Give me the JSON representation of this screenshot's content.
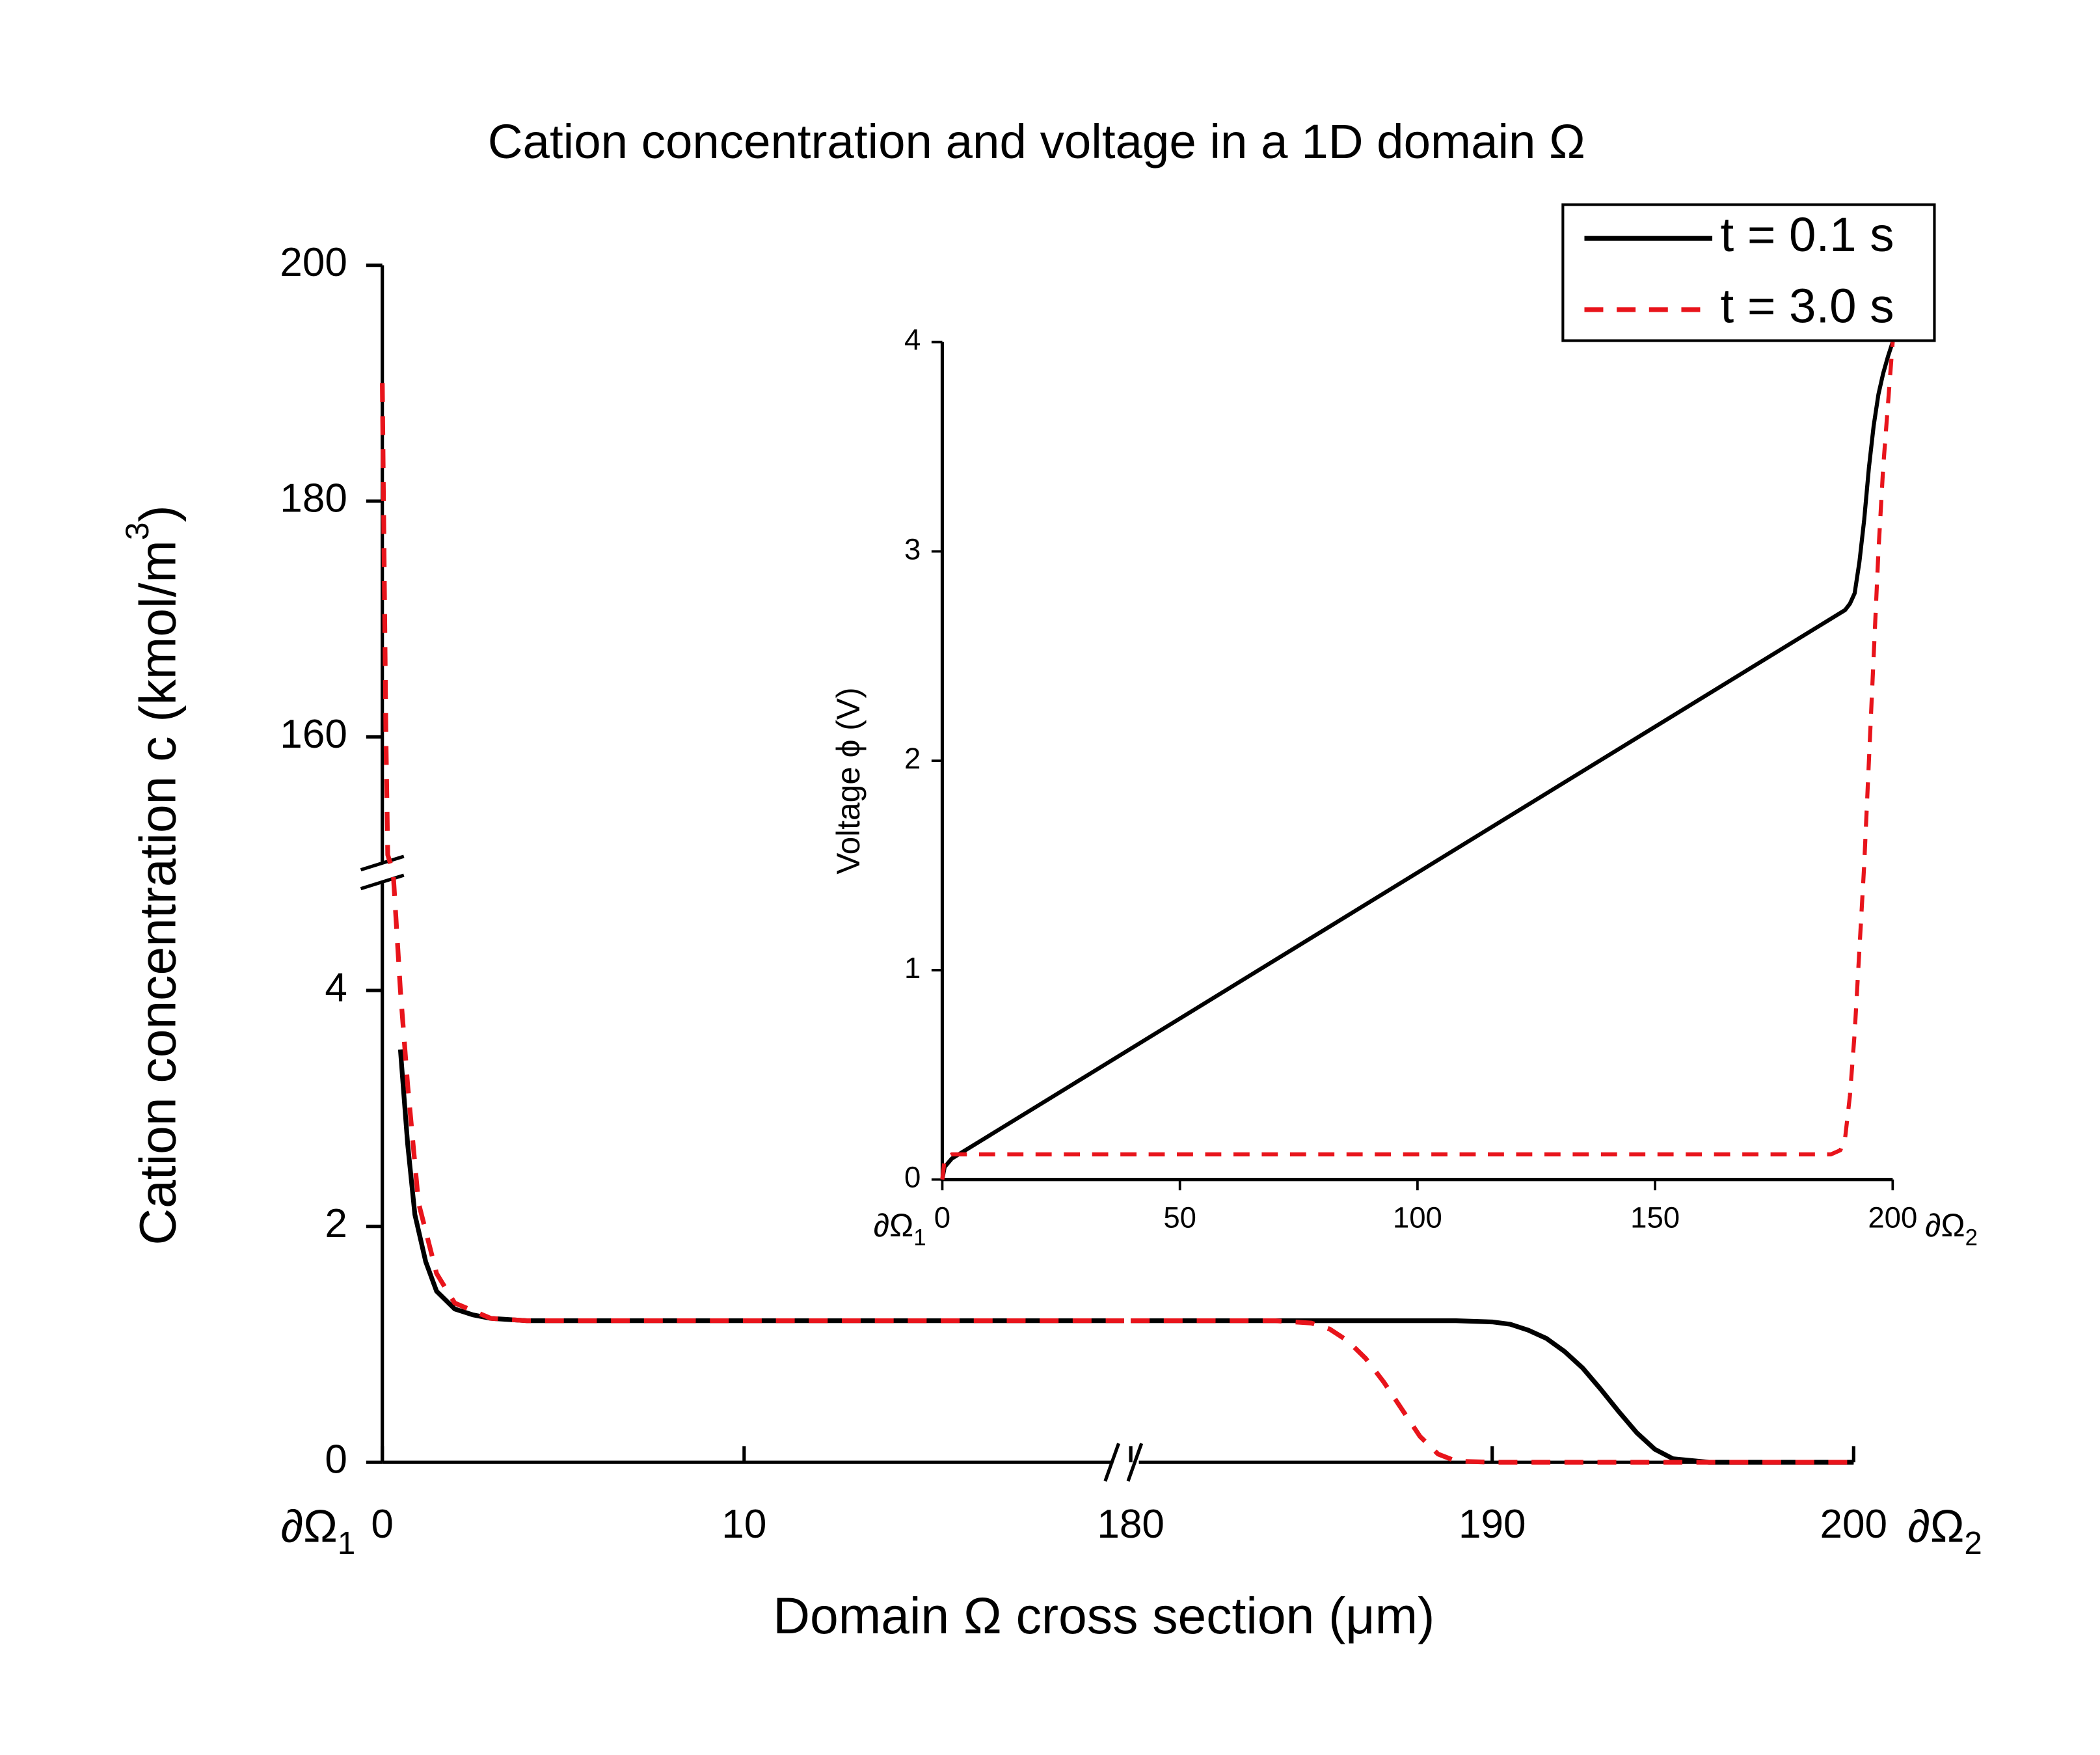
{
  "chart_data": [
    {
      "type": "line",
      "title": "Cation concentration and voltage in a 1D domain Ω",
      "xlabel": "Domain Ω cross section (μm)",
      "ylabel": [
        "Cation concentration c (kmol/m",
        "3",
        ")"
      ],
      "xlim": [
        0,
        200
      ],
      "xbreak": [
        20.5,
        180
      ],
      "xticks": [
        0,
        10,
        180,
        190,
        200
      ],
      "ylim": [
        0,
        200
      ],
      "ybreak": [
        5,
        148.5
      ],
      "yticks": [
        0,
        2,
        4,
        160,
        180,
        200
      ],
      "boundary_labels": [
        {
          "text": "∂Ω",
          "sub": "1"
        },
        {
          "text": "∂Ω",
          "sub": "2"
        }
      ],
      "legend": "top-right",
      "series": [
        {
          "name": "t = 0.1 s",
          "color": "#000000",
          "dash": false,
          "x": [
            0.5,
            0.7,
            0.9,
            1.2,
            1.5,
            2,
            2.5,
            3,
            4,
            6,
            10,
            20.5,
            null,
            180,
            185,
            189,
            190,
            190.5,
            191,
            191.5,
            192,
            192.5,
            193,
            193.5,
            194,
            194.5,
            195,
            196,
            200
          ],
          "values": [
            3.5,
            2.7,
            2.1,
            1.7,
            1.45,
            1.3,
            1.25,
            1.22,
            1.2,
            1.2,
            1.2,
            1.2,
            null,
            1.2,
            1.2,
            1.2,
            1.19,
            1.17,
            1.12,
            1.05,
            0.94,
            0.8,
            0.62,
            0.43,
            0.25,
            0.11,
            0.03,
            0,
            0
          ]
        },
        {
          "name": "t = 3.0 s",
          "color": "#e8141b",
          "dash": true,
          "x": [
            0,
            0.05,
            0.1,
            0.15,
            0.3,
            0.5,
            0.7,
            1,
            1.5,
            2,
            3,
            4,
            10,
            20.5,
            null,
            180,
            184,
            185,
            185.5,
            186,
            186.5,
            187,
            187.5,
            188,
            188.5,
            189,
            190,
            200
          ],
          "values": [
            190,
            175,
            160,
            150,
            5,
            4,
            3.2,
            2.2,
            1.6,
            1.35,
            1.22,
            1.2,
            1.2,
            1.2,
            null,
            1.2,
            1.2,
            1.18,
            1.13,
            1.03,
            0.88,
            0.68,
            0.45,
            0.22,
            0.07,
            0.01,
            0,
            0
          ]
        }
      ]
    },
    {
      "type": "line",
      "ylabel": "Voltage ϕ (V)",
      "xlim": [
        0,
        200
      ],
      "xticks": [
        0,
        50,
        100,
        150,
        200
      ],
      "ylim": [
        0,
        4
      ],
      "yticks": [
        0,
        1,
        2,
        3,
        4
      ],
      "boundary_labels": [
        {
          "text": "∂Ω",
          "sub": "1"
        },
        {
          "text": "∂Ω",
          "sub": "2"
        }
      ],
      "series": [
        {
          "color": "#000000",
          "dash": false,
          "x": [
            0,
            0.5,
            2,
            190,
            191,
            192,
            193,
            194,
            195,
            196,
            197,
            198,
            199,
            200
          ],
          "values": [
            0,
            0.06,
            0.1,
            2.72,
            2.75,
            2.8,
            2.95,
            3.15,
            3.4,
            3.6,
            3.75,
            3.85,
            3.93,
            4.0
          ]
        },
        {
          "color": "#e8141b",
          "dash": true,
          "x": [
            0,
            0.5,
            2,
            187,
            189,
            190,
            191,
            192,
            193,
            194,
            195,
            196,
            197,
            198,
            199,
            200
          ],
          "values": [
            0,
            0.1,
            0.12,
            0.12,
            0.14,
            0.2,
            0.4,
            0.7,
            1.1,
            1.5,
            2.0,
            2.5,
            3.0,
            3.4,
            3.7,
            4.0
          ]
        }
      ]
    }
  ]
}
